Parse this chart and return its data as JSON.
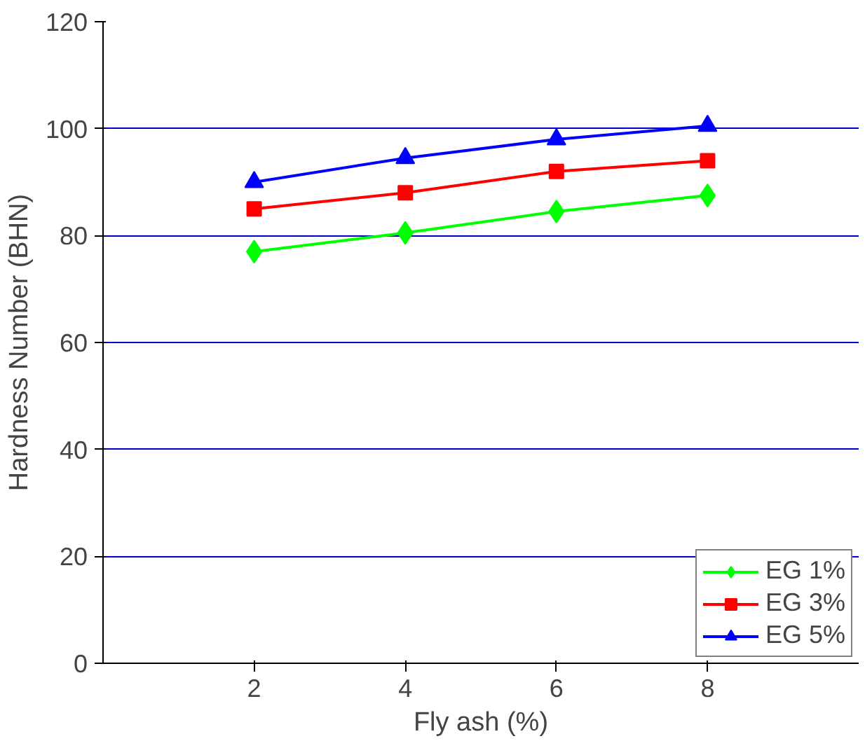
{
  "chart_data": {
    "type": "line",
    "xlabel": "Fly ash (%)",
    "ylabel": "Hardness Number (BHN)",
    "x": [
      2,
      4,
      6,
      8
    ],
    "series": [
      {
        "name": "EG 1%",
        "color": "#00ff00",
        "marker": "diamond",
        "values": [
          77,
          80.5,
          84.5,
          87.5
        ]
      },
      {
        "name": "EG 3%",
        "color": "#ff0000",
        "marker": "square",
        "values": [
          85,
          88,
          92,
          94
        ]
      },
      {
        "name": "EG 5%",
        "color": "#0000ff",
        "marker": "triangle",
        "values": [
          90,
          94.5,
          98,
          100.5
        ]
      }
    ],
    "xlim": [
      0,
      10
    ],
    "xticks": [
      2,
      4,
      6,
      8
    ],
    "ylim": [
      0,
      120
    ],
    "yticks": [
      0,
      20,
      40,
      60,
      80,
      100,
      120
    ],
    "grid": "y",
    "legend": "bottom right",
    "line_style": "solid"
  }
}
